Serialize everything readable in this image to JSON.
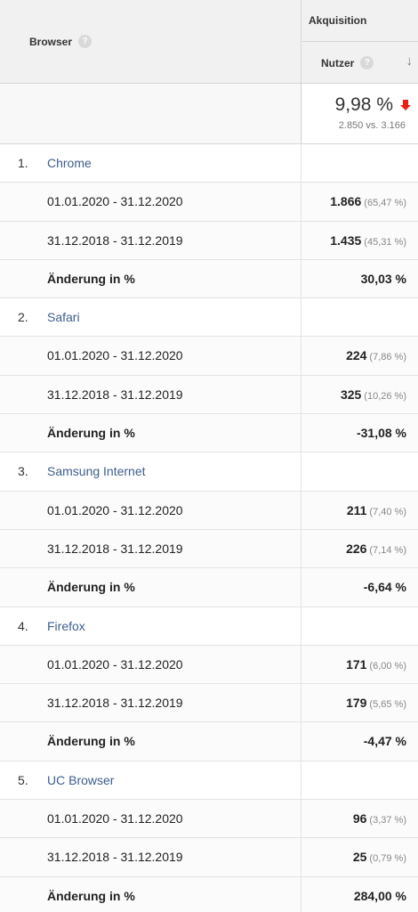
{
  "header": {
    "browser_label": "Browser",
    "help_glyph": "?",
    "group_label": "Akquisition",
    "metric_label": "Nutzer",
    "sort_icon": "arrow-down-icon"
  },
  "total": {
    "value": "9,98 %",
    "direction": "down",
    "arrow_color": "#e62117",
    "comparison": "2.850 vs. 3.166"
  },
  "period_a": "01.01.2020 - 31.12.2020",
  "period_b": "31.12.2018 - 31.12.2019",
  "change_label": "Änderung in %",
  "link_color": "#3e5e8e",
  "browsers": [
    {
      "index": "1.",
      "name": "Chrome",
      "a_value": "1.866",
      "a_pct": "(65,47 %)",
      "b_value": "1.435",
      "b_pct": "(45,31 %)",
      "change": "30,03 %"
    },
    {
      "index": "2.",
      "name": "Safari",
      "a_value": "224",
      "a_pct": "(7,86 %)",
      "b_value": "325",
      "b_pct": "(10,26 %)",
      "change": "-31,08 %"
    },
    {
      "index": "3.",
      "name": "Samsung Internet",
      "a_value": "211",
      "a_pct": "(7,40 %)",
      "b_value": "226",
      "b_pct": "(7,14 %)",
      "change": "-6,64 %"
    },
    {
      "index": "4.",
      "name": "Firefox",
      "a_value": "171",
      "a_pct": "(6,00 %)",
      "b_value": "179",
      "b_pct": "(5,65 %)",
      "change": "-4,47 %"
    },
    {
      "index": "5.",
      "name": "UC Browser",
      "a_value": "96",
      "a_pct": "(3,37 %)",
      "b_value": "25",
      "b_pct": "(0,79 %)",
      "change": "284,00 %"
    }
  ]
}
